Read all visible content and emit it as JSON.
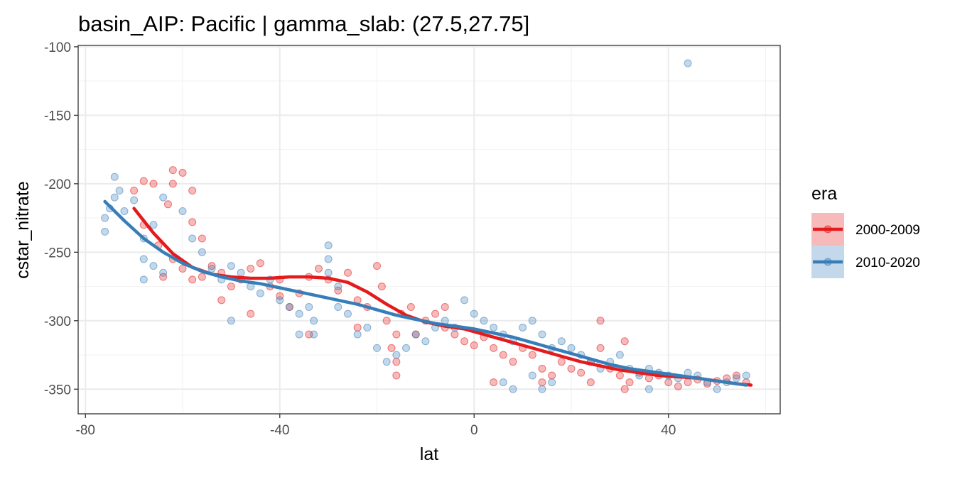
{
  "chart_data": {
    "type": "scatter",
    "title": "basin_AIP: Pacific | gamma_slab:  (27.5,27.75]",
    "xlabel": "lat",
    "ylabel": "cstar_nitrate",
    "xlim": [
      -81.5,
      63
    ],
    "ylim": [
      -368,
      -99
    ],
    "xticks": [
      -80,
      -40,
      0,
      40
    ],
    "yticks": [
      -100,
      -150,
      -200,
      -250,
      -300,
      -350
    ],
    "grid": true,
    "legend": {
      "title": "era",
      "placement": "right"
    },
    "series": [
      {
        "name": "2000-2009",
        "color": "#E41A1C",
        "points": [
          [
            -70,
            -205
          ],
          [
            -68,
            -198
          ],
          [
            -66,
            -200
          ],
          [
            -63,
            -215
          ],
          [
            -62,
            -190
          ],
          [
            -60,
            -192
          ],
          [
            -58,
            -205
          ],
          [
            -68,
            -230
          ],
          [
            -65,
            -245
          ],
          [
            -62,
            -255
          ],
          [
            -60,
            -262
          ],
          [
            -58,
            -270
          ],
          [
            -56,
            -268
          ],
          [
            -54,
            -260
          ],
          [
            -52,
            -265
          ],
          [
            -50,
            -275
          ],
          [
            -48,
            -270
          ],
          [
            -46,
            -262
          ],
          [
            -44,
            -258
          ],
          [
            -42,
            -275
          ],
          [
            -40,
            -282
          ],
          [
            -38,
            -290
          ],
          [
            -36,
            -280
          ],
          [
            -34,
            -268
          ],
          [
            -32,
            -262
          ],
          [
            -30,
            -270
          ],
          [
            -28,
            -278
          ],
          [
            -26,
            -265
          ],
          [
            -24,
            -285
          ],
          [
            -22,
            -290
          ],
          [
            -20,
            -260
          ],
          [
            -19,
            -275
          ],
          [
            -18,
            -300
          ],
          [
            -17,
            -320
          ],
          [
            -16,
            -340
          ],
          [
            -16,
            -330
          ],
          [
            -16,
            -310
          ],
          [
            -15,
            -295
          ],
          [
            -13,
            -290
          ],
          [
            -10,
            -300
          ],
          [
            -8,
            -295
          ],
          [
            -6,
            -305
          ],
          [
            -4,
            -310
          ],
          [
            -2,
            -315
          ],
          [
            0,
            -318
          ],
          [
            2,
            -312
          ],
          [
            4,
            -320
          ],
          [
            6,
            -325
          ],
          [
            8,
            -330
          ],
          [
            10,
            -320
          ],
          [
            12,
            -325
          ],
          [
            14,
            -335
          ],
          [
            16,
            -340
          ],
          [
            18,
            -330
          ],
          [
            20,
            -335
          ],
          [
            22,
            -338
          ],
          [
            24,
            -330
          ],
          [
            26,
            -320
          ],
          [
            26,
            -300
          ],
          [
            28,
            -335
          ],
          [
            30,
            -340
          ],
          [
            32,
            -345
          ],
          [
            34,
            -338
          ],
          [
            36,
            -342
          ],
          [
            38,
            -340
          ],
          [
            40,
            -345
          ],
          [
            42,
            -348
          ],
          [
            44,
            -345
          ],
          [
            46,
            -343
          ],
          [
            48,
            -346
          ],
          [
            50,
            -344
          ],
          [
            52,
            -342
          ],
          [
            54,
            -340
          ],
          [
            56,
            -345
          ],
          [
            -52,
            -285
          ],
          [
            -46,
            -295
          ],
          [
            -40,
            -270
          ],
          [
            -34,
            -310
          ],
          [
            -24,
            -305
          ],
          [
            -12,
            -310
          ],
          [
            -6,
            -290
          ],
          [
            4,
            -345
          ],
          [
            14,
            -345
          ],
          [
            24,
            -345
          ],
          [
            31,
            -315
          ],
          [
            31,
            -350
          ],
          [
            -56,
            -240
          ],
          [
            -64,
            -268
          ],
          [
            -58,
            -228
          ],
          [
            -62,
            -200
          ]
        ],
        "smooth": [
          [
            -70,
            -218
          ],
          [
            -66,
            -236
          ],
          [
            -62,
            -251
          ],
          [
            -58,
            -261
          ],
          [
            -54,
            -266
          ],
          [
            -50,
            -268
          ],
          [
            -46,
            -269
          ],
          [
            -42,
            -269
          ],
          [
            -38,
            -268
          ],
          [
            -34,
            -268
          ],
          [
            -30,
            -269
          ],
          [
            -26,
            -272
          ],
          [
            -22,
            -279
          ],
          [
            -18,
            -288
          ],
          [
            -14,
            -296
          ],
          [
            -10,
            -301
          ],
          [
            -6,
            -304
          ],
          [
            -2,
            -306
          ],
          [
            2,
            -310
          ],
          [
            6,
            -314
          ],
          [
            10,
            -318
          ],
          [
            14,
            -322
          ],
          [
            18,
            -326
          ],
          [
            22,
            -330
          ],
          [
            26,
            -333
          ],
          [
            30,
            -336
          ],
          [
            34,
            -338
          ],
          [
            38,
            -340
          ],
          [
            42,
            -341
          ],
          [
            46,
            -342
          ],
          [
            50,
            -344
          ],
          [
            54,
            -346
          ],
          [
            57,
            -347
          ]
        ]
      },
      {
        "name": "2010-2020",
        "color": "#377EB8",
        "points": [
          [
            -76,
            -225
          ],
          [
            -76,
            -235
          ],
          [
            -75,
            -218
          ],
          [
            -74,
            -210
          ],
          [
            -74,
            -195
          ],
          [
            -73,
            -205
          ],
          [
            -72,
            -220
          ],
          [
            -70,
            -212
          ],
          [
            -68,
            -240
          ],
          [
            -68,
            -255
          ],
          [
            -68,
            -270
          ],
          [
            -66,
            -260
          ],
          [
            -64,
            -265
          ],
          [
            -60,
            -220
          ],
          [
            -58,
            -240
          ],
          [
            -56,
            -250
          ],
          [
            -54,
            -262
          ],
          [
            -52,
            -270
          ],
          [
            -50,
            -260
          ],
          [
            -48,
            -265
          ],
          [
            -46,
            -275
          ],
          [
            -44,
            -280
          ],
          [
            -42,
            -270
          ],
          [
            -40,
            -285
          ],
          [
            -38,
            -290
          ],
          [
            -36,
            -295
          ],
          [
            -34,
            -290
          ],
          [
            -33,
            -300
          ],
          [
            -33,
            -310
          ],
          [
            -30,
            -255
          ],
          [
            -30,
            -245
          ],
          [
            -30,
            -265
          ],
          [
            -28,
            -290
          ],
          [
            -26,
            -295
          ],
          [
            -24,
            -310
          ],
          [
            -22,
            -305
          ],
          [
            -20,
            -320
          ],
          [
            -18,
            -330
          ],
          [
            -16,
            -325
          ],
          [
            -14,
            -320
          ],
          [
            -12,
            -310
          ],
          [
            -10,
            -315
          ],
          [
            -8,
            -305
          ],
          [
            -6,
            -300
          ],
          [
            -4,
            -305
          ],
          [
            -2,
            -285
          ],
          [
            0,
            -295
          ],
          [
            2,
            -300
          ],
          [
            4,
            -305
          ],
          [
            6,
            -310
          ],
          [
            8,
            -315
          ],
          [
            10,
            -305
          ],
          [
            12,
            -300
          ],
          [
            14,
            -310
          ],
          [
            16,
            -320
          ],
          [
            18,
            -315
          ],
          [
            20,
            -320
          ],
          [
            22,
            -325
          ],
          [
            24,
            -330
          ],
          [
            26,
            -335
          ],
          [
            28,
            -330
          ],
          [
            30,
            -325
          ],
          [
            32,
            -335
          ],
          [
            34,
            -340
          ],
          [
            36,
            -335
          ],
          [
            38,
            -338
          ],
          [
            40,
            -340
          ],
          [
            42,
            -342
          ],
          [
            44,
            -338
          ],
          [
            46,
            -340
          ],
          [
            48,
            -345
          ],
          [
            50,
            -350
          ],
          [
            52,
            -345
          ],
          [
            54,
            -342
          ],
          [
            56,
            -340
          ],
          [
            12,
            -340
          ],
          [
            14,
            -350
          ],
          [
            16,
            -345
          ],
          [
            6,
            -345
          ],
          [
            8,
            -350
          ],
          [
            36,
            -350
          ],
          [
            44,
            -112
          ],
          [
            -28,
            -275
          ],
          [
            -36,
            -310
          ],
          [
            -50,
            -300
          ],
          [
            -64,
            -210
          ],
          [
            -66,
            -230
          ]
        ],
        "smooth": [
          [
            -76,
            -213
          ],
          [
            -72,
            -227
          ],
          [
            -68,
            -240
          ],
          [
            -64,
            -250
          ],
          [
            -60,
            -258
          ],
          [
            -56,
            -264
          ],
          [
            -52,
            -268
          ],
          [
            -48,
            -271
          ],
          [
            -44,
            -273
          ],
          [
            -40,
            -276
          ],
          [
            -36,
            -279
          ],
          [
            -32,
            -282
          ],
          [
            -28,
            -285
          ],
          [
            -24,
            -288
          ],
          [
            -20,
            -292
          ],
          [
            -16,
            -296
          ],
          [
            -12,
            -299
          ],
          [
            -8,
            -302
          ],
          [
            -4,
            -304
          ],
          [
            0,
            -306
          ],
          [
            4,
            -309
          ],
          [
            8,
            -312
          ],
          [
            12,
            -316
          ],
          [
            16,
            -320
          ],
          [
            20,
            -324
          ],
          [
            24,
            -328
          ],
          [
            28,
            -332
          ],
          [
            32,
            -335
          ],
          [
            36,
            -337
          ],
          [
            40,
            -339
          ],
          [
            44,
            -341
          ],
          [
            48,
            -343
          ],
          [
            52,
            -345
          ],
          [
            56,
            -347
          ]
        ]
      }
    ]
  }
}
